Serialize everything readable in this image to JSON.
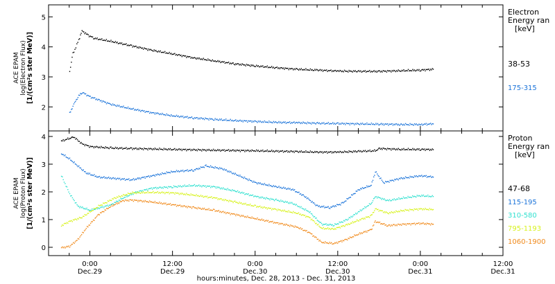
{
  "chart_data": [
    {
      "type": "scatter",
      "panel": "electron",
      "ylabel": [
        "ACE EPAM",
        "log(Electron Flux)",
        "[1/(cm²s ster MeV)]"
      ],
      "ylim": [
        1.2,
        5.4
      ],
      "yticks": [
        2,
        3,
        4,
        5
      ],
      "legend_title": [
        "Electron",
        "Energy ran",
        "[keV]"
      ],
      "legend_placement": "right",
      "series": [
        {
          "name": "38-53",
          "color": "#000000",
          "points": [
            [
              0.5,
              3.2
            ],
            [
              0.58,
              3.8
            ],
            [
              0.65,
              4.0
            ],
            [
              0.72,
              4.25
            ],
            [
              0.8,
              4.55
            ],
            [
              0.95,
              4.4
            ],
            [
              1.1,
              4.3
            ],
            [
              1.5,
              4.2
            ],
            [
              2.0,
              4.05
            ],
            [
              2.5,
              3.9
            ],
            [
              3.0,
              3.78
            ],
            [
              3.5,
              3.65
            ],
            [
              4.0,
              3.55
            ],
            [
              4.5,
              3.45
            ],
            [
              5.0,
              3.38
            ],
            [
              5.5,
              3.32
            ],
            [
              6.0,
              3.27
            ],
            [
              6.5,
              3.24
            ],
            [
              7.0,
              3.21
            ],
            [
              7.5,
              3.2
            ],
            [
              8.0,
              3.2
            ],
            [
              8.5,
              3.22
            ],
            [
              9.0,
              3.24
            ],
            [
              9.3,
              3.27
            ]
          ]
        },
        {
          "name": "175-315",
          "color": "#1a73d9",
          "points": [
            [
              0.5,
              1.8
            ],
            [
              0.6,
              2.1
            ],
            [
              0.7,
              2.35
            ],
            [
              0.8,
              2.5
            ],
            [
              1.0,
              2.35
            ],
            [
              1.5,
              2.1
            ],
            [
              2.0,
              1.95
            ],
            [
              2.5,
              1.82
            ],
            [
              3.0,
              1.72
            ],
            [
              3.5,
              1.65
            ],
            [
              4.0,
              1.6
            ],
            [
              4.5,
              1.56
            ],
            [
              5.0,
              1.53
            ],
            [
              5.5,
              1.5
            ],
            [
              6.0,
              1.49
            ],
            [
              6.5,
              1.47
            ],
            [
              7.0,
              1.46
            ],
            [
              7.5,
              1.45
            ],
            [
              8.0,
              1.44
            ],
            [
              8.5,
              1.43
            ],
            [
              9.0,
              1.43
            ],
            [
              9.3,
              1.45
            ]
          ]
        }
      ]
    },
    {
      "type": "scatter",
      "panel": "proton",
      "ylabel": [
        "ACE EPAM",
        "log(Proton Flux)",
        "[1/(cm²s ster MeV)]"
      ],
      "ylim": [
        -0.3,
        4.2
      ],
      "yticks": [
        0,
        1,
        2,
        3,
        4
      ],
      "legend_title": [
        "Proton",
        "Energy ran",
        "[keV]"
      ],
      "legend_placement": "right",
      "series": [
        {
          "name": "47-68",
          "color": "#000000",
          "points": [
            [
              0.3,
              3.85
            ],
            [
              0.5,
              3.95
            ],
            [
              0.6,
              4.0
            ],
            [
              0.8,
              3.75
            ],
            [
              1.0,
              3.65
            ],
            [
              1.5,
              3.6
            ],
            [
              2.0,
              3.58
            ],
            [
              3.0,
              3.55
            ],
            [
              4.0,
              3.52
            ],
            [
              5.0,
              3.5
            ],
            [
              6.0,
              3.47
            ],
            [
              6.5,
              3.45
            ],
            [
              7.0,
              3.45
            ],
            [
              7.5,
              3.48
            ],
            [
              7.9,
              3.5
            ],
            [
              8.0,
              3.58
            ],
            [
              8.5,
              3.55
            ],
            [
              9.0,
              3.55
            ],
            [
              9.3,
              3.54
            ]
          ]
        },
        {
          "name": "115-195",
          "color": "#1a73d9",
          "points": [
            [
              0.3,
              3.4
            ],
            [
              0.5,
              3.2
            ],
            [
              0.7,
              2.95
            ],
            [
              0.9,
              2.7
            ],
            [
              1.2,
              2.55
            ],
            [
              1.6,
              2.5
            ],
            [
              2.0,
              2.45
            ],
            [
              2.5,
              2.6
            ],
            [
              3.0,
              2.75
            ],
            [
              3.5,
              2.8
            ],
            [
              3.8,
              2.95
            ],
            [
              4.2,
              2.85
            ],
            [
              4.6,
              2.6
            ],
            [
              5.0,
              2.35
            ],
            [
              5.5,
              2.2
            ],
            [
              5.9,
              2.1
            ],
            [
              6.2,
              1.85
            ],
            [
              6.5,
              1.5
            ],
            [
              6.8,
              1.45
            ],
            [
              7.1,
              1.6
            ],
            [
              7.5,
              2.1
            ],
            [
              7.8,
              2.25
            ],
            [
              7.9,
              2.75
            ],
            [
              8.1,
              2.35
            ],
            [
              8.5,
              2.5
            ],
            [
              9.0,
              2.6
            ],
            [
              9.3,
              2.55
            ]
          ]
        },
        {
          "name": "310-580",
          "color": "#2fe0cf",
          "points": [
            [
              0.3,
              2.6
            ],
            [
              0.5,
              1.95
            ],
            [
              0.7,
              1.5
            ],
            [
              1.0,
              1.35
            ],
            [
              1.5,
              1.55
            ],
            [
              1.8,
              1.8
            ],
            [
              2.1,
              2.0
            ],
            [
              2.5,
              2.15
            ],
            [
              3.0,
              2.2
            ],
            [
              3.5,
              2.25
            ],
            [
              4.0,
              2.2
            ],
            [
              4.5,
              2.05
            ],
            [
              5.0,
              1.85
            ],
            [
              5.5,
              1.72
            ],
            [
              5.9,
              1.6
            ],
            [
              6.3,
              1.3
            ],
            [
              6.6,
              0.85
            ],
            [
              6.9,
              0.82
            ],
            [
              7.2,
              1.0
            ],
            [
              7.6,
              1.4
            ],
            [
              7.8,
              1.6
            ],
            [
              7.9,
              1.85
            ],
            [
              8.2,
              1.7
            ],
            [
              8.6,
              1.8
            ],
            [
              9.0,
              1.88
            ],
            [
              9.3,
              1.85
            ]
          ]
        },
        {
          "name": "795-1193",
          "color": "#d7f21b",
          "points": [
            [
              0.3,
              0.8
            ],
            [
              0.5,
              0.95
            ],
            [
              0.8,
              1.1
            ],
            [
              1.2,
              1.5
            ],
            [
              1.6,
              1.8
            ],
            [
              2.0,
              1.98
            ],
            [
              2.5,
              2.0
            ],
            [
              3.0,
              1.98
            ],
            [
              3.5,
              1.9
            ],
            [
              4.0,
              1.8
            ],
            [
              4.5,
              1.65
            ],
            [
              5.0,
              1.5
            ],
            [
              5.5,
              1.38
            ],
            [
              6.0,
              1.25
            ],
            [
              6.3,
              1.1
            ],
            [
              6.6,
              0.7
            ],
            [
              6.9,
              0.68
            ],
            [
              7.2,
              0.82
            ],
            [
              7.5,
              1.0
            ],
            [
              7.8,
              1.15
            ],
            [
              7.9,
              1.4
            ],
            [
              8.2,
              1.25
            ],
            [
              8.6,
              1.35
            ],
            [
              9.0,
              1.4
            ],
            [
              9.3,
              1.38
            ]
          ]
        },
        {
          "name": "1060-1900",
          "color": "#f08a1c",
          "points": [
            [
              0.3,
              0.0
            ],
            [
              0.5,
              0.05
            ],
            [
              0.7,
              0.3
            ],
            [
              0.9,
              0.7
            ],
            [
              1.2,
              1.2
            ],
            [
              1.5,
              1.5
            ],
            [
              1.8,
              1.7
            ],
            [
              2.0,
              1.72
            ],
            [
              2.5,
              1.65
            ],
            [
              3.0,
              1.55
            ],
            [
              3.5,
              1.45
            ],
            [
              4.0,
              1.35
            ],
            [
              4.5,
              1.2
            ],
            [
              5.0,
              1.05
            ],
            [
              5.5,
              0.9
            ],
            [
              6.0,
              0.75
            ],
            [
              6.3,
              0.55
            ],
            [
              6.6,
              0.2
            ],
            [
              6.9,
              0.15
            ],
            [
              7.2,
              0.3
            ],
            [
              7.5,
              0.5
            ],
            [
              7.8,
              0.65
            ],
            [
              7.9,
              0.95
            ],
            [
              8.2,
              0.8
            ],
            [
              8.6,
              0.85
            ],
            [
              9.0,
              0.88
            ],
            [
              9.3,
              0.85
            ]
          ]
        }
      ]
    }
  ],
  "x_axis": {
    "xlim": [
      0,
      11
    ],
    "ticks": [
      {
        "x": 1,
        "time": "0:00",
        "date": "Dec.29"
      },
      {
        "x": 3,
        "time": "12:00",
        "date": "Dec.29"
      },
      {
        "x": 5,
        "time": "0:00",
        "date": "Dec.30"
      },
      {
        "x": 7,
        "time": "12:00",
        "date": "Dec.30"
      },
      {
        "x": 9,
        "time": "0:00",
        "date": "Dec.31"
      },
      {
        "x": 11,
        "time": "12:00",
        "date": "Dec.31"
      }
    ],
    "label": "hours:minutes, Dec. 28, 2013 - Dec. 31, 2013"
  }
}
